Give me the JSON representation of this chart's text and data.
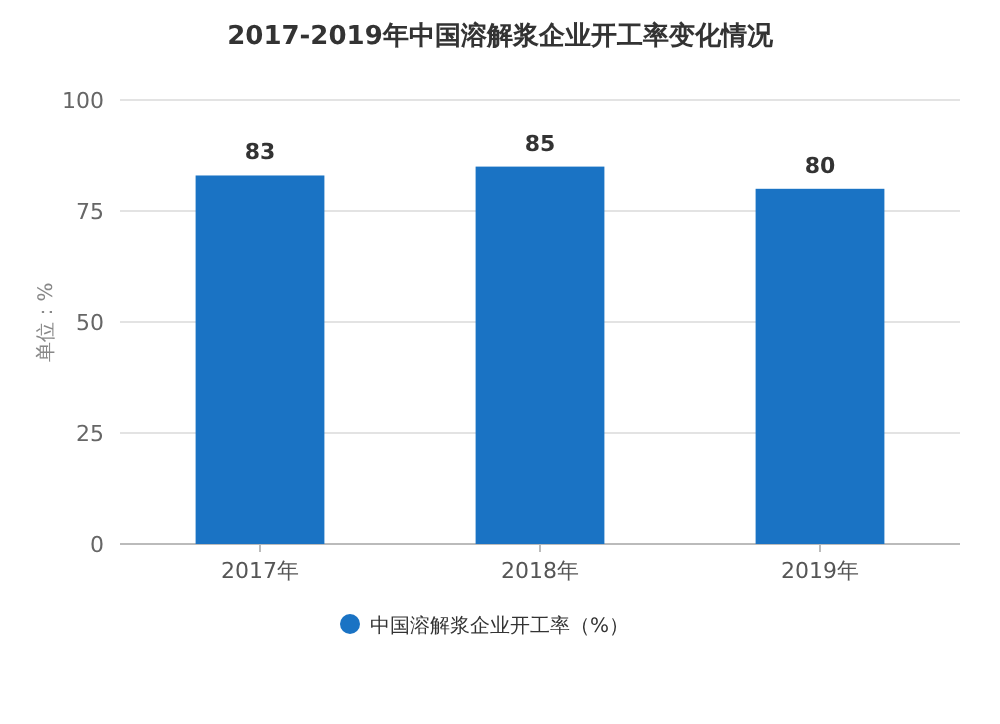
{
  "chart_data": {
    "type": "bar",
    "title": "2017-2019年中国溶解浆企业开工率变化情况",
    "ylabel": "单位：%",
    "categories": [
      "2017年",
      "2018年",
      "2019年"
    ],
    "series": [
      {
        "name": "中国溶解浆企业开工率（%）",
        "color": "#1a73c4",
        "values": [
          83,
          85,
          80
        ]
      }
    ],
    "ylim": [
      0,
      100
    ],
    "yticks": [
      0,
      25,
      50,
      75,
      100
    ],
    "grid": "y",
    "legend": "bottom",
    "data_labels": true
  }
}
